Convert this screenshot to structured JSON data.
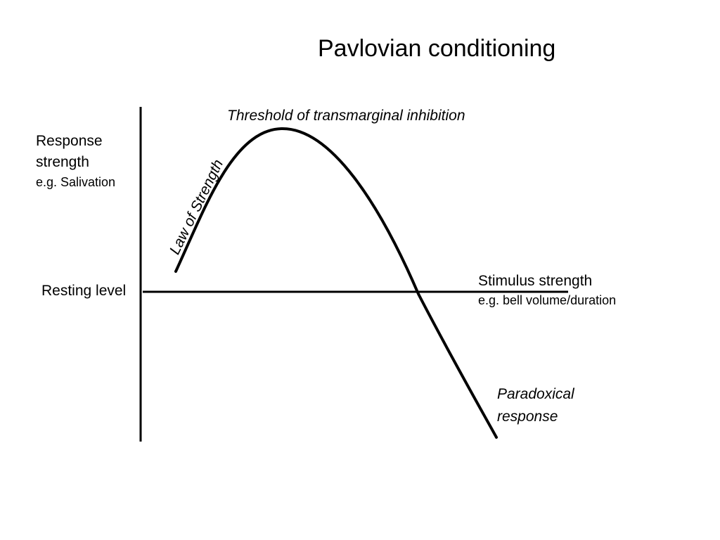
{
  "title": "Pavlovian conditioning",
  "y_axis": {
    "label_line1": "Response",
    "label_line2": "strength",
    "example": "e.g. Salivation"
  },
  "baseline_label": "Resting level",
  "x_axis": {
    "label": "Stimulus strength",
    "example": "e.g. bell volume/duration"
  },
  "annotations": {
    "threshold": "Threshold of transmarginal inhibition",
    "law": "Law of Strength",
    "paradox_line1": "Paradoxical",
    "paradox_line2": "response"
  },
  "colors": {
    "line": "#000000",
    "background": "#ffffff"
  }
}
